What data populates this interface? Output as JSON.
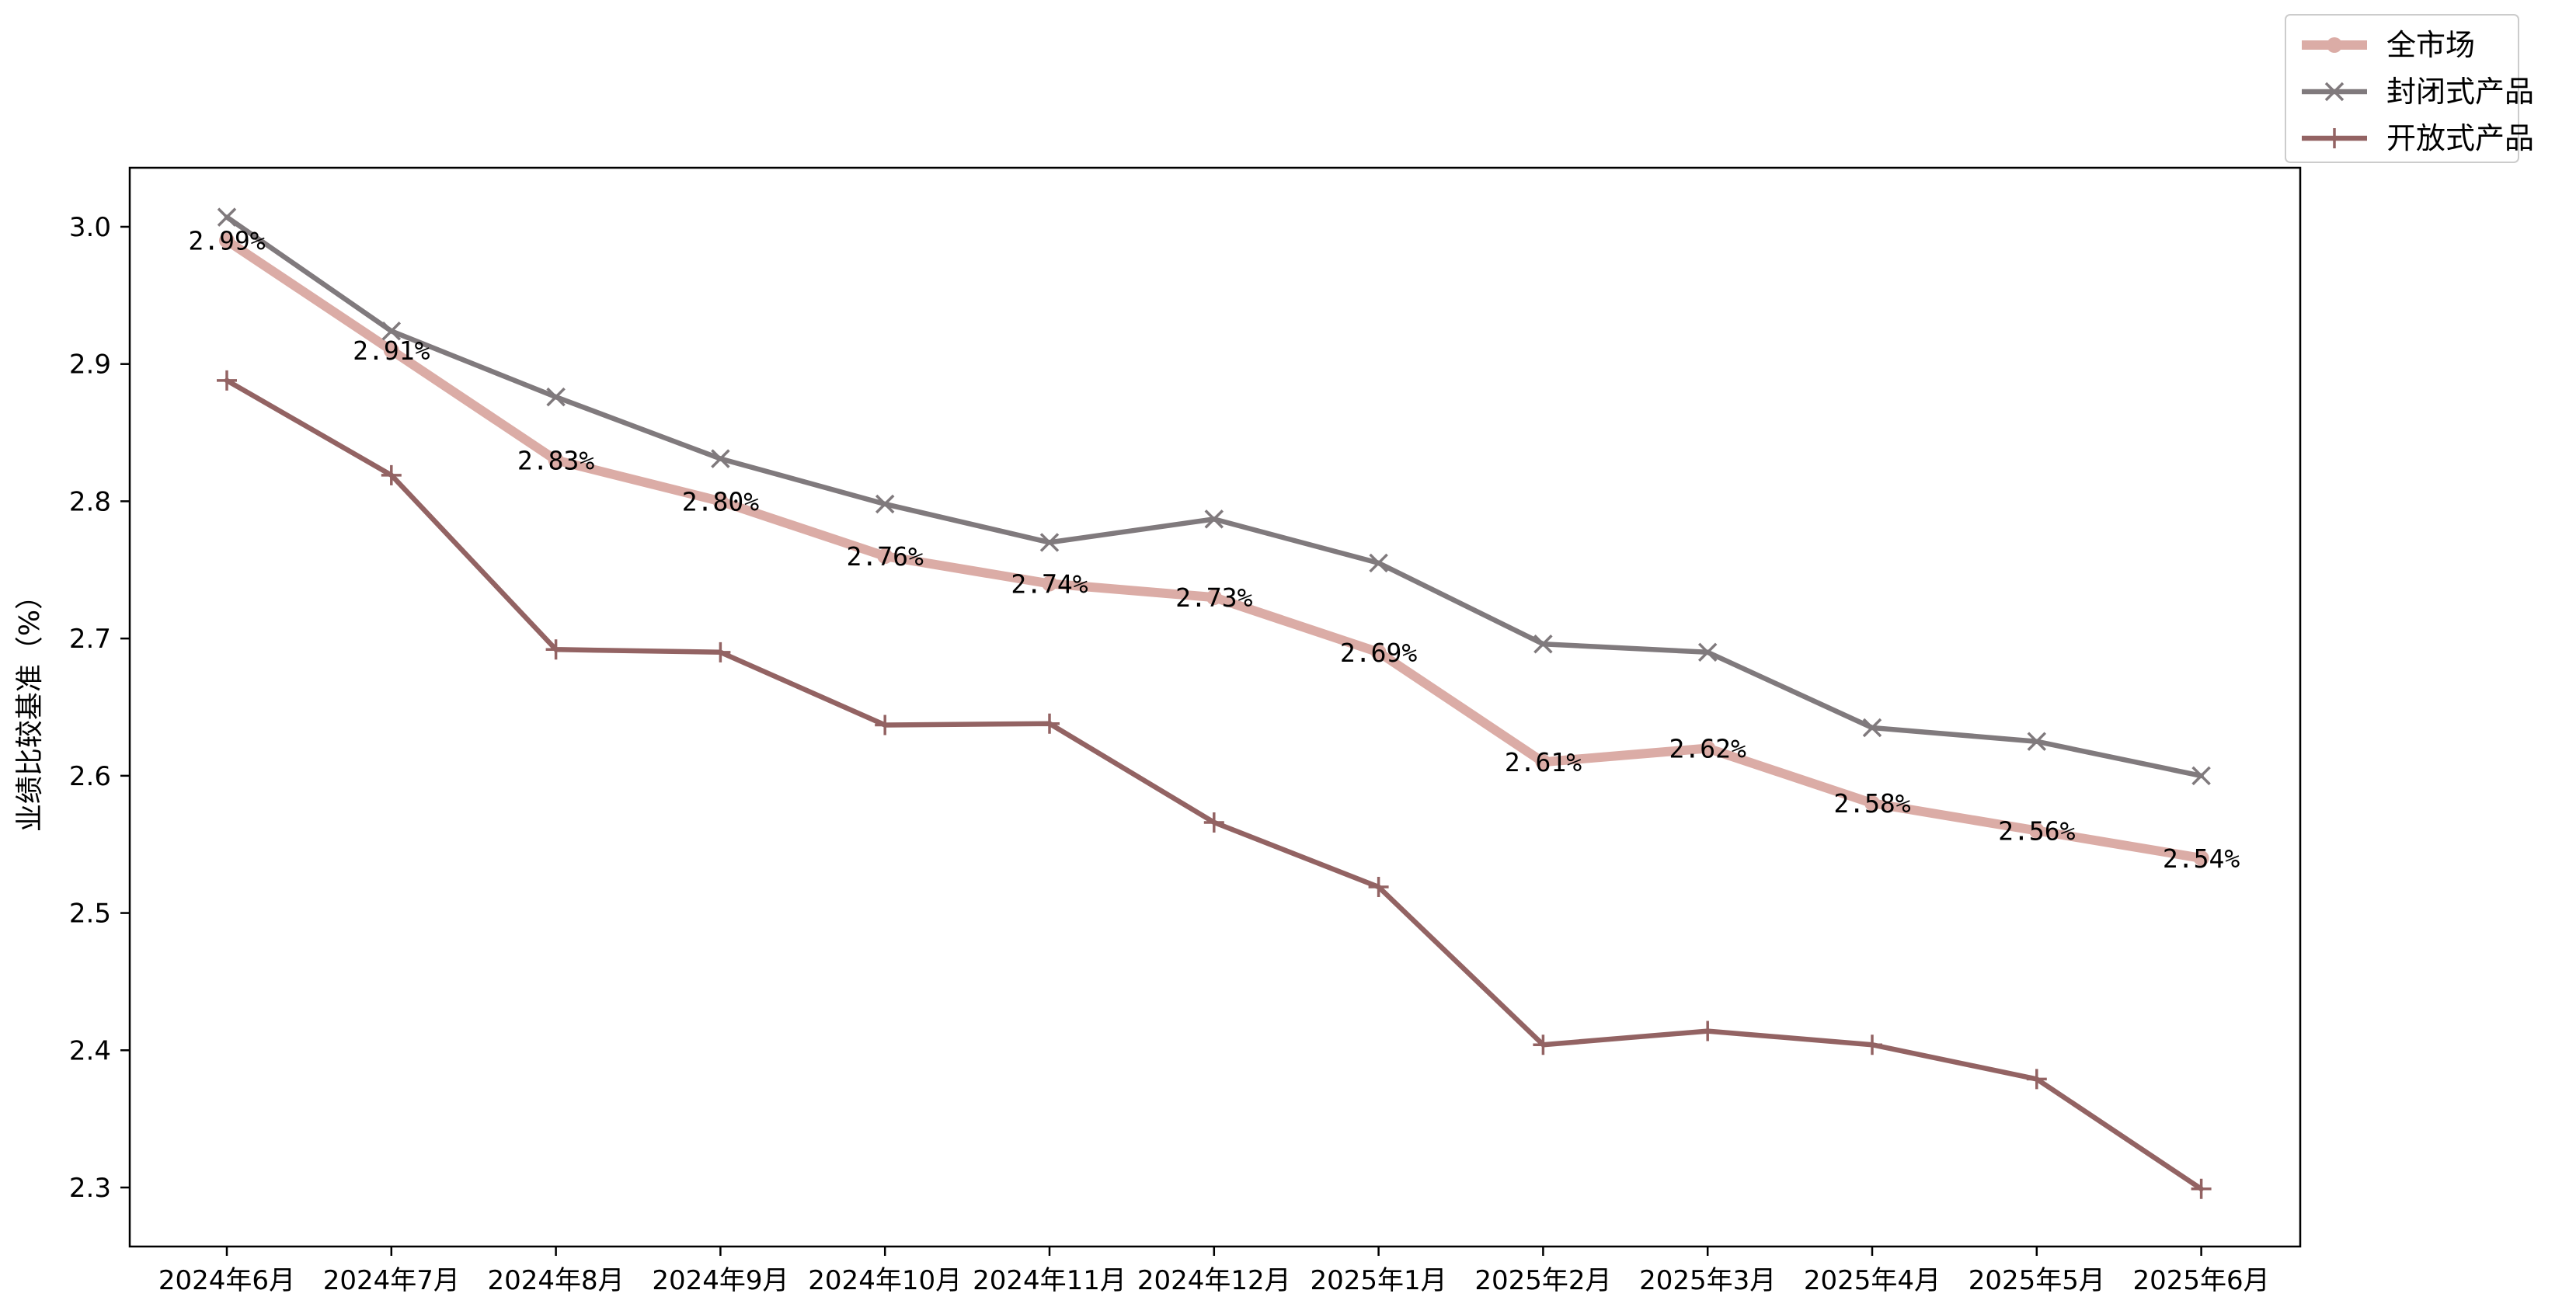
{
  "chart_data": {
    "type": "line",
    "title": "",
    "xlabel": "",
    "ylabel": "业绩比较基准（%）",
    "categories": [
      "2024年6月",
      "2024年7月",
      "2024年8月",
      "2024年9月",
      "2024年10月",
      "2024年11月",
      "2024年12月",
      "2025年1月",
      "2025年2月",
      "2025年3月",
      "2025年4月",
      "2025年5月",
      "2025年6月"
    ],
    "ylim": [
      2.257,
      3.043
    ],
    "yticks": [
      2.3,
      2.4,
      2.5,
      2.6,
      2.7,
      2.8,
      2.9,
      3.0
    ],
    "ytick_labels": [
      "2.3",
      "2.4",
      "2.5",
      "2.6",
      "2.7",
      "2.8",
      "2.9",
      "3.0"
    ],
    "grid": false,
    "legend_position": "top-right (outside plot)",
    "series": [
      {
        "name": "全市场",
        "color": "#dbaca6",
        "marker": "circle",
        "values": [
          2.99,
          2.91,
          2.83,
          2.8,
          2.76,
          2.74,
          2.73,
          2.69,
          2.61,
          2.62,
          2.58,
          2.56,
          2.54
        ],
        "labels": [
          "2.99%",
          "2.91%",
          "2.83%",
          "2.80%",
          "2.76%",
          "2.74%",
          "2.73%",
          "2.69%",
          "2.61%",
          "2.62%",
          "2.58%",
          "2.56%",
          "2.54%"
        ]
      },
      {
        "name": "封闭式产品",
        "color": "#807a7d",
        "marker": "x",
        "values": [
          3.007,
          2.924,
          2.876,
          2.831,
          2.798,
          2.77,
          2.787,
          2.755,
          2.696,
          2.69,
          2.635,
          2.625,
          2.6
        ]
      },
      {
        "name": "开放式产品",
        "color": "#936363",
        "marker": "plus",
        "values": [
          2.888,
          2.819,
          2.692,
          2.69,
          2.637,
          2.638,
          2.566,
          2.519,
          2.404,
          2.414,
          2.404,
          2.379,
          2.299
        ]
      }
    ]
  }
}
